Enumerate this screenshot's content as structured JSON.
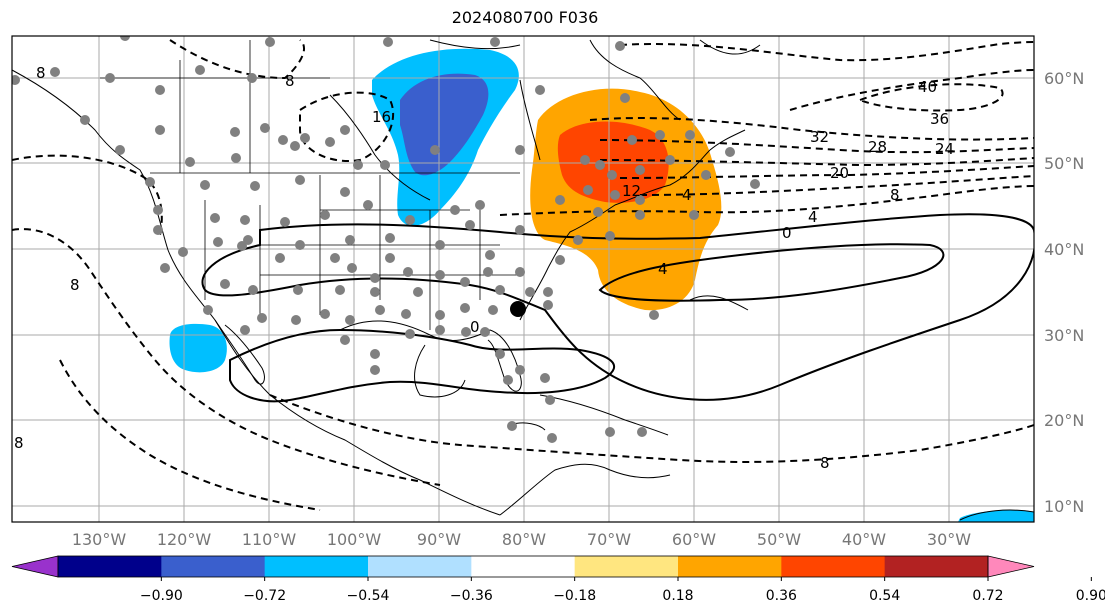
{
  "title": "2024080700 F036",
  "map": {
    "lat_labels": [
      "60°N",
      "50°N",
      "40°N",
      "30°N",
      "20°N",
      "10°N"
    ],
    "lon_labels": [
      "130°W",
      "120°W",
      "110°W",
      "100°W",
      "90°W",
      "80°W",
      "70°W",
      "60°W",
      "50°W",
      "40°W",
      "30°W"
    ],
    "contour_labels": [
      "8",
      "8",
      "16",
      "32",
      "28",
      "24",
      "20",
      "40",
      "36",
      "8",
      "4",
      "0",
      "4",
      "12",
      "4",
      "0",
      "8",
      "8",
      "8"
    ],
    "colors": {
      "blue_dark": "#3a5fcd",
      "blue_light": "#00bfff",
      "orange": "#ffa500",
      "red_orange": "#ff4500",
      "station": "#808080"
    }
  },
  "colorbar": {
    "ticks": [
      "−0.90",
      "−0.72",
      "−0.54",
      "−0.36",
      "−0.18",
      "0.18",
      "0.36",
      "0.54",
      "0.72",
      "0.90"
    ],
    "colors": [
      "#9932cc",
      "#00008b",
      "#3a5fcd",
      "#00bfff",
      "#b0e0ff",
      "#ffffff",
      "#ffe680",
      "#ffa500",
      "#ff4500",
      "#b22222",
      "#ff88bb"
    ]
  }
}
